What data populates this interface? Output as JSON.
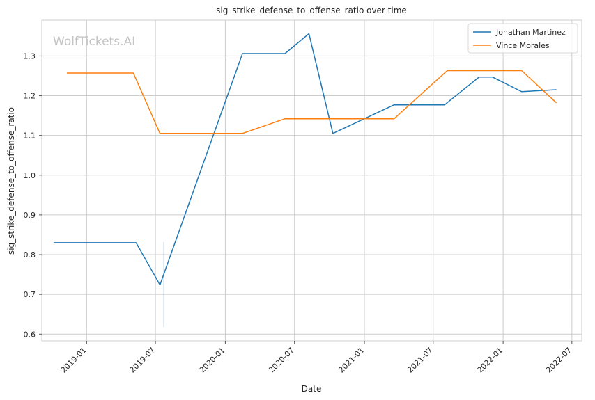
{
  "chart_data": {
    "type": "line",
    "title": "sig_strike_defense_to_offense_ratio over time",
    "xlabel": "Date",
    "ylabel": "sig_strike_defense_to_offense_ratio",
    "watermark": "WolfTickets.AI",
    "x_ticks": [
      "2019-01",
      "2019-07",
      "2020-01",
      "2020-07",
      "2021-01",
      "2021-07",
      "2022-01",
      "2022-07"
    ],
    "y_ticks": [
      0.6,
      0.7,
      0.8,
      0.9,
      1.0,
      1.1,
      1.2,
      1.3
    ],
    "xlim": [
      "2018-09-05",
      "2022-07-27"
    ],
    "ylim": [
      0.583,
      1.39
    ],
    "grid": true,
    "legend_position": "top-right",
    "series": [
      {
        "name": "Jonathan Martinez",
        "color": "#1f77b4",
        "points": [
          [
            "2018-10-06",
            0.83
          ],
          [
            "2019-05-11",
            0.83
          ],
          [
            "2019-07-13",
            0.724
          ],
          [
            "2020-02-15",
            1.306
          ],
          [
            "2020-06-06",
            1.306
          ],
          [
            "2020-08-08",
            1.356
          ],
          [
            "2020-10-10",
            1.105
          ],
          [
            "2021-03-20",
            1.177
          ],
          [
            "2021-07-31",
            1.177
          ],
          [
            "2021-10-30",
            1.247
          ],
          [
            "2021-12-04",
            1.247
          ],
          [
            "2022-02-19",
            1.21
          ],
          [
            "2022-05-21",
            1.215
          ]
        ]
      },
      {
        "name": "Vince Morales",
        "color": "#ff7f0e",
        "points": [
          [
            "2018-11-10",
            1.257
          ],
          [
            "2019-05-04",
            1.257
          ],
          [
            "2019-07-13",
            1.105
          ],
          [
            "2020-02-15",
            1.105
          ],
          [
            "2020-06-06",
            1.142
          ],
          [
            "2021-03-20",
            1.142
          ],
          [
            "2021-08-07",
            1.263
          ],
          [
            "2022-02-19",
            1.263
          ],
          [
            "2022-05-21",
            1.182
          ]
        ]
      }
    ]
  }
}
